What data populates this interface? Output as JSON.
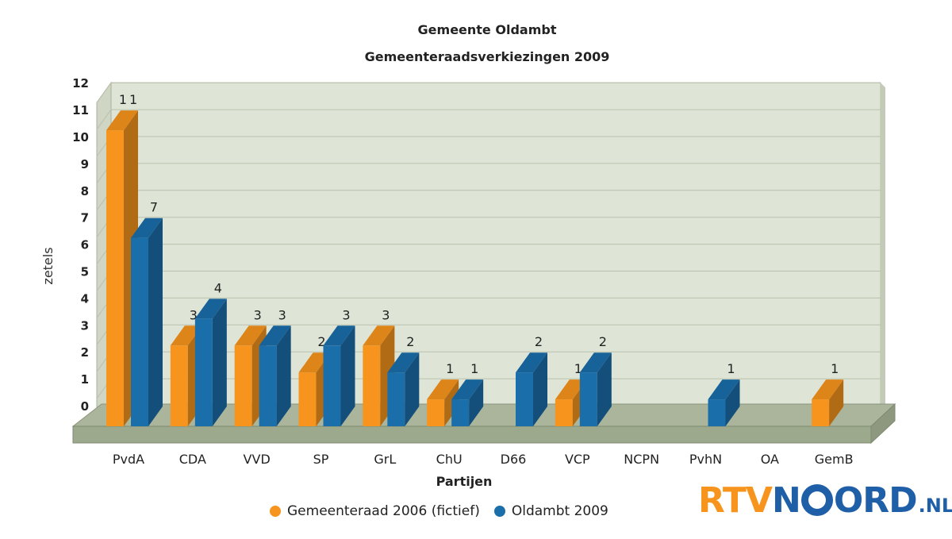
{
  "chart_data": {
    "type": "bar",
    "title": "Gemeente Oldambt",
    "subtitle": "Gemeenteraadsverkiezingen 2009",
    "xlabel": "Partijen",
    "ylabel": "zetels",
    "ylim": [
      0,
      12
    ],
    "yticks": [
      "0",
      "1",
      "2",
      "3",
      "4",
      "5",
      "6",
      "7",
      "8",
      "9",
      "10",
      "11",
      "12"
    ],
    "grid": true,
    "legend_position": "bottom",
    "categories": [
      "PvdA",
      "CDA",
      "VVD",
      "SP",
      "GrL",
      "ChU",
      "D66",
      "VCP",
      "NCPN",
      "PvhN",
      "OA",
      "GemB"
    ],
    "series": [
      {
        "name": "Gemeenteraad 2006 (fictief)",
        "color": "#f7941d",
        "values": [
          11,
          3,
          3,
          2,
          3,
          1,
          0,
          1,
          0,
          0,
          0,
          1
        ]
      },
      {
        "name": "Oldambt 2009",
        "color": "#1a6eaa",
        "values": [
          7,
          4,
          3,
          3,
          2,
          1,
          2,
          2,
          0,
          1,
          0,
          0
        ]
      }
    ],
    "data_labels": [
      [
        "11",
        "3",
        "3",
        "2",
        "3",
        "1",
        "",
        "1",
        "",
        "",
        "",
        "1"
      ],
      [
        "7",
        "4",
        "3",
        "3",
        "2",
        "1",
        "2",
        "2",
        "",
        "1",
        "",
        ""
      ]
    ]
  },
  "logo": {
    "part1": "RTV",
    "part2a": "N",
    "part2b": "ORD",
    "suffix": ".NL"
  }
}
